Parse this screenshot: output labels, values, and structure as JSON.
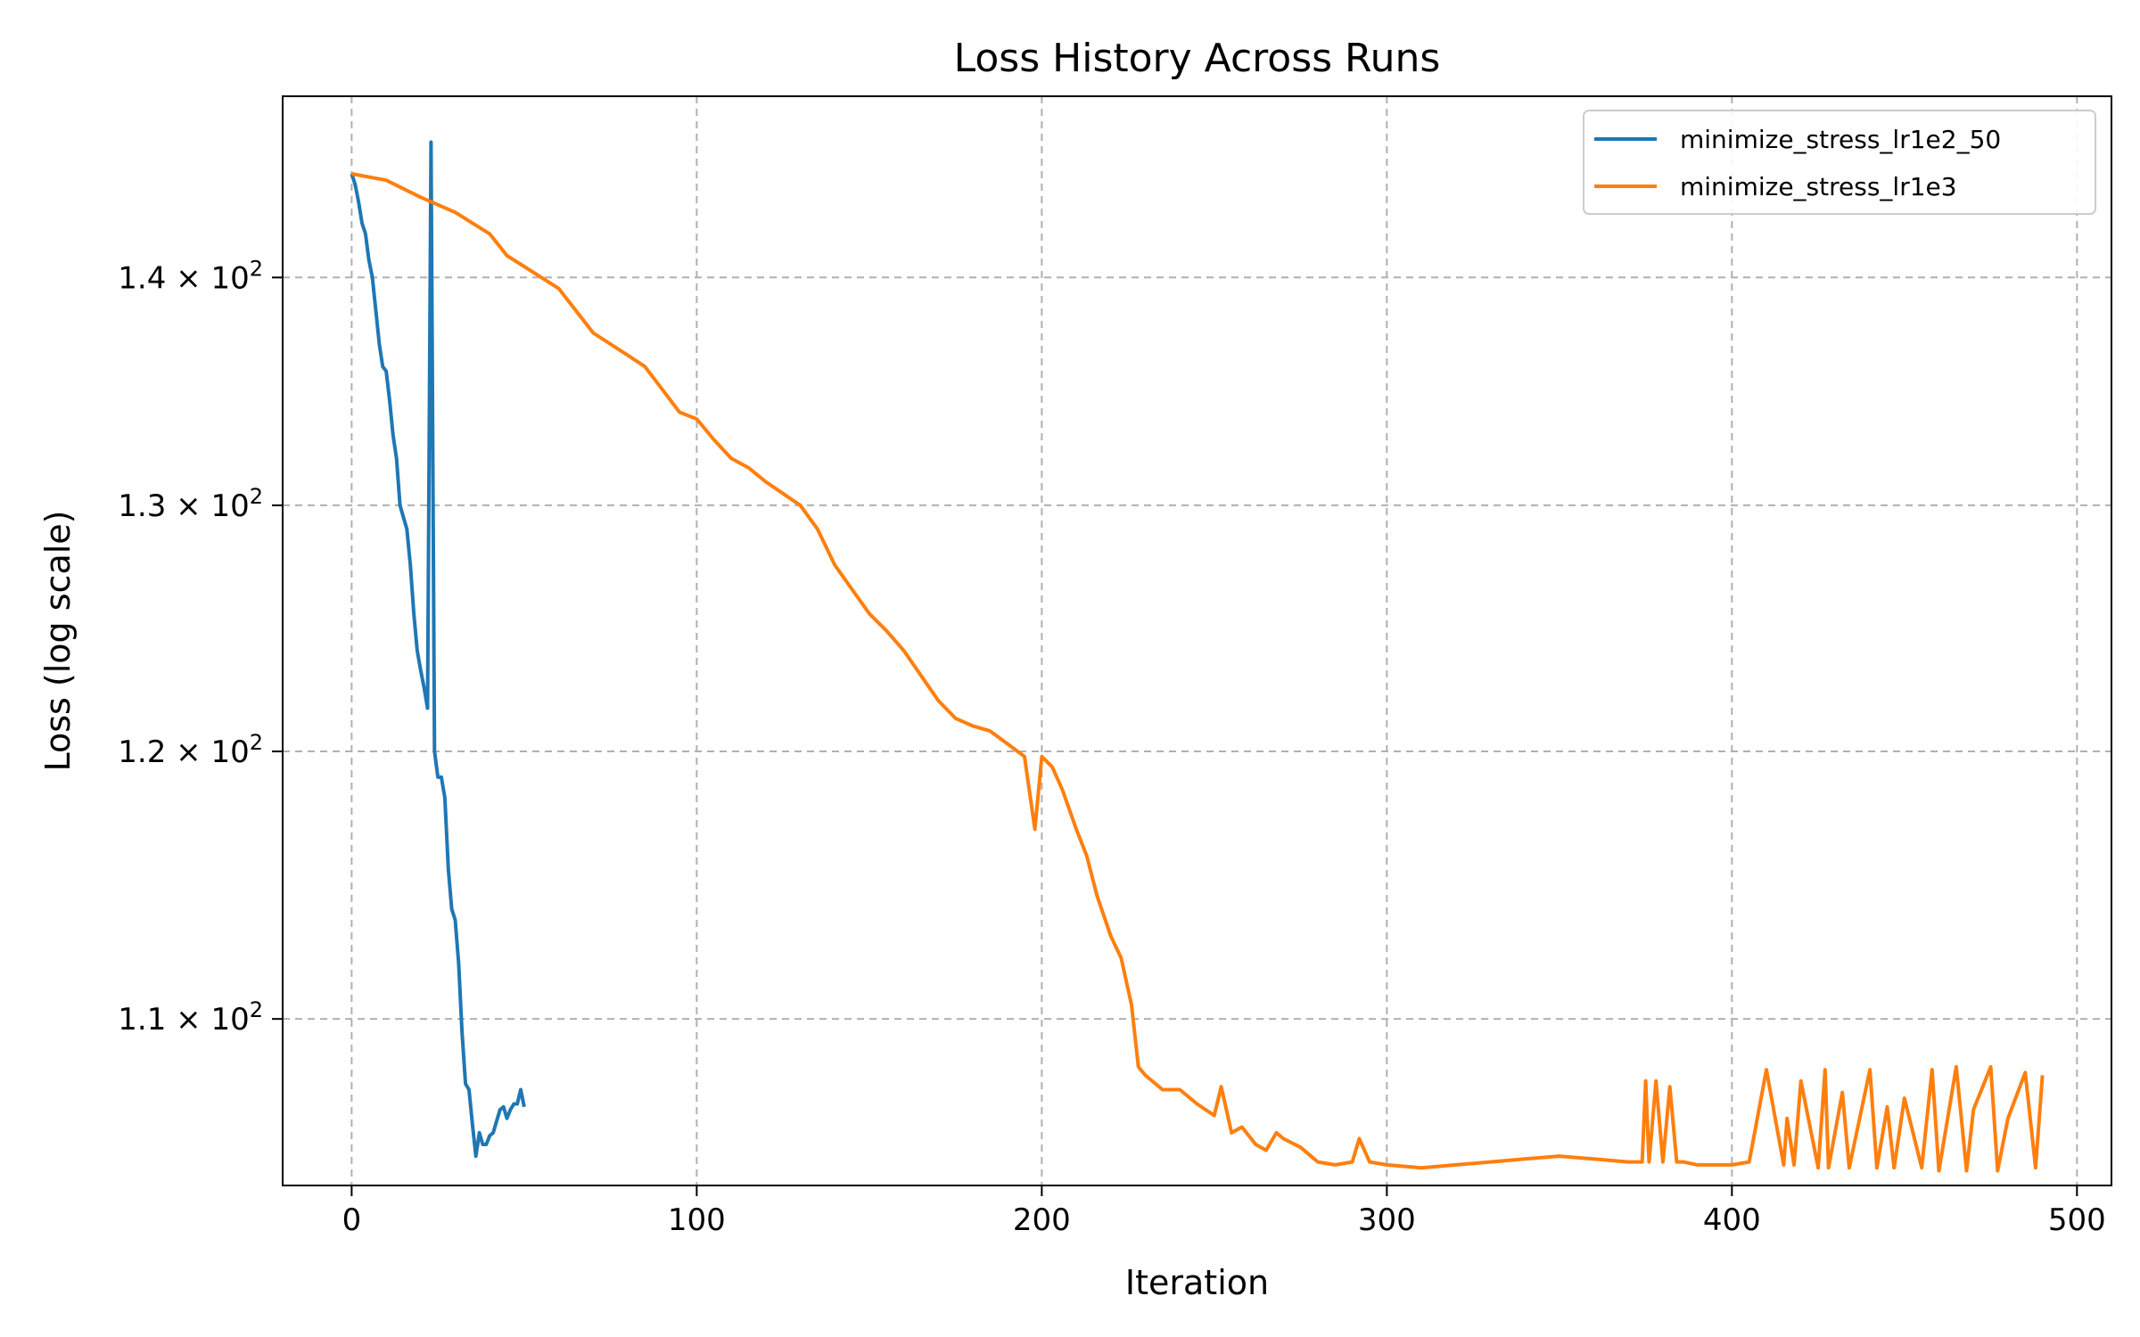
{
  "chart_data": {
    "type": "line",
    "title": "Loss History Across Runs",
    "xlabel": "Iteration",
    "ylabel": "Loss (log scale)",
    "yscale": "log",
    "xlim": [
      -20,
      510
    ],
    "ylim": [
      104.2,
      148.5
    ],
    "grid": true,
    "legend_position": "top-right",
    "x_ticks": [
      0,
      100,
      200,
      300,
      400,
      500
    ],
    "y_ticks": [
      {
        "value": 110,
        "mantissa": "1.1",
        "base": "10",
        "exp": "2"
      },
      {
        "value": 120,
        "mantissa": "1.2",
        "base": "10",
        "exp": "2"
      },
      {
        "value": 130,
        "mantissa": "1.3",
        "base": "10",
        "exp": "2"
      },
      {
        "value": 140,
        "mantissa": "1.4",
        "base": "10",
        "exp": "2"
      }
    ],
    "times_symbol": "×",
    "series": [
      {
        "name": "minimize_stress_lr1e2_50",
        "color": "#1f77b4",
        "x": [
          0,
          1,
          2,
          3,
          4,
          5,
          6,
          7,
          8,
          9,
          10,
          11,
          12,
          13,
          14,
          15,
          16,
          17,
          18,
          19,
          20,
          21,
          22,
          23,
          24,
          25,
          26,
          27,
          28,
          29,
          30,
          31,
          32,
          33,
          34,
          35,
          36,
          37,
          38,
          39,
          40,
          41,
          42,
          43,
          44,
          45,
          46,
          47,
          48,
          49,
          50
        ],
        "y": [
          144.8,
          144.3,
          143.5,
          142.5,
          142.0,
          140.8,
          140.0,
          138.5,
          137.0,
          136.0,
          135.8,
          134.5,
          133.0,
          132.0,
          130.0,
          129.5,
          129.0,
          127.5,
          125.5,
          124.0,
          123.2,
          122.5,
          121.7,
          146.3,
          120.0,
          119.0,
          119.0,
          118.2,
          115.5,
          114.0,
          113.6,
          112.0,
          109.5,
          107.7,
          107.5,
          106.3,
          105.2,
          106.0,
          105.6,
          105.6,
          105.9,
          106.0,
          106.4,
          106.8,
          106.9,
          106.5,
          106.8,
          107.0,
          107.0,
          107.5,
          106.9
        ]
      },
      {
        "name": "minimize_stress_lr1e3",
        "color": "#ff7f0e",
        "x": [
          0,
          10,
          20,
          30,
          40,
          45,
          50,
          55,
          60,
          65,
          70,
          75,
          80,
          85,
          90,
          95,
          100,
          105,
          110,
          115,
          120,
          125,
          130,
          135,
          140,
          145,
          150,
          155,
          160,
          165,
          170,
          175,
          180,
          185,
          190,
          195,
          198,
          200,
          203,
          206,
          210,
          213,
          216,
          220,
          223,
          226,
          228,
          230,
          235,
          240,
          245,
          250,
          252,
          255,
          258,
          262,
          265,
          268,
          270,
          275,
          280,
          285,
          290,
          292,
          295,
          300,
          310,
          320,
          330,
          340,
          350,
          360,
          370,
          374,
          375,
          376,
          378,
          380,
          382,
          384,
          386,
          390,
          400,
          405,
          410,
          415,
          416,
          418,
          420,
          425,
          427,
          428,
          432,
          434,
          440,
          442,
          445,
          447,
          450,
          455,
          458,
          460,
          465,
          468,
          470,
          475,
          477,
          480,
          485,
          488,
          490
        ],
        "y": [
          144.8,
          144.5,
          143.7,
          143.0,
          142.0,
          141.0,
          140.5,
          140.0,
          139.5,
          138.5,
          137.5,
          137.0,
          136.5,
          136.0,
          135.0,
          134.0,
          133.7,
          132.8,
          132.0,
          131.6,
          131.0,
          130.5,
          130.0,
          129.0,
          127.5,
          126.5,
          125.5,
          124.8,
          124.0,
          123.0,
          122.0,
          121.3,
          121.0,
          120.8,
          120.3,
          119.8,
          117.0,
          119.8,
          119.4,
          118.5,
          117.0,
          116.0,
          114.5,
          113.0,
          112.2,
          110.5,
          108.3,
          108.0,
          107.5,
          107.5,
          107.0,
          106.6,
          107.6,
          106.0,
          106.2,
          105.6,
          105.4,
          106.0,
          105.8,
          105.5,
          105.0,
          104.9,
          105.0,
          105.8,
          105.0,
          104.9,
          104.8,
          104.9,
          105.0,
          105.1,
          105.2,
          105.1,
          105.0,
          105.0,
          107.8,
          105.0,
          107.8,
          105.0,
          107.6,
          105.0,
          105.0,
          104.9,
          104.9,
          105.0,
          108.2,
          104.9,
          106.5,
          104.9,
          107.8,
          104.8,
          108.2,
          104.8,
          107.4,
          104.8,
          108.2,
          104.8,
          106.9,
          104.8,
          107.2,
          104.8,
          108.2,
          104.7,
          108.3,
          104.7,
          106.8,
          108.3,
          104.7,
          106.5,
          108.1,
          104.8,
          108.0
        ]
      }
    ]
  }
}
